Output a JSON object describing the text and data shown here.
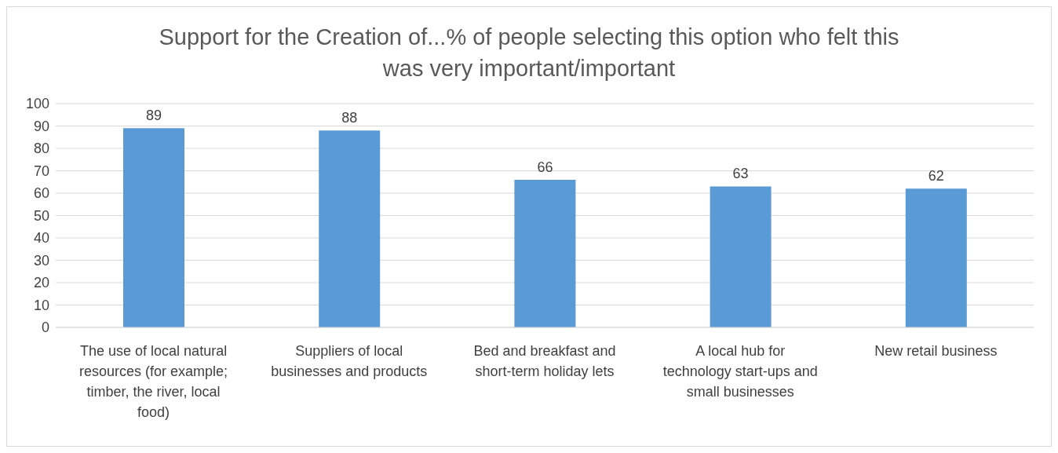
{
  "chart_data": {
    "type": "bar",
    "title": "Support for the Creation of...% of people selecting this option who felt this was very important/important",
    "categories": [
      "The use of local natural resources (for example; timber, the river, local food)",
      "Suppliers of local businesses and products",
      "Bed and breakfast and short-term holiday lets",
      "A local hub for technology start-ups and small businesses",
      "New retail business"
    ],
    "values": [
      89,
      88,
      66,
      63,
      62
    ],
    "color": "#5b9bd5",
    "ylim": [
      0,
      100
    ],
    "yticks": [
      0,
      10,
      20,
      30,
      40,
      50,
      60,
      70,
      80,
      90,
      100
    ],
    "grid": "y",
    "data_labels": true
  }
}
